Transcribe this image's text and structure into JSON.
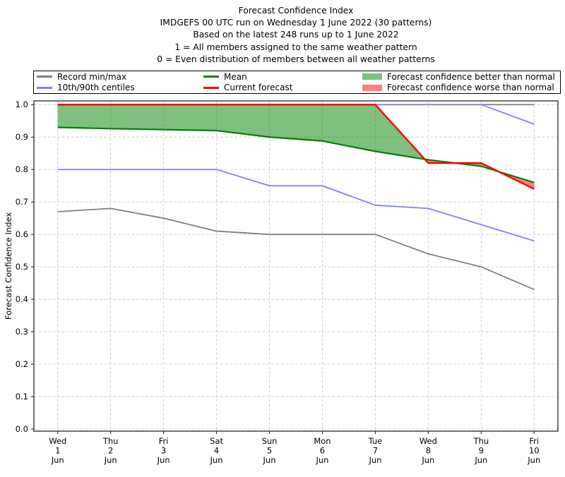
{
  "titles": [
    "Forecast Confidence Index",
    "IMDGEFS 00 UTC run on Wednesday 1 June 2022 (30 patterns)",
    "Based on the latest 248 runs up to 1 June 2022",
    "1 = All members assigned to the same weather pattern",
    "0 = Even distribution of members between all weather patterns"
  ],
  "legend": {
    "items": [
      {
        "label": "Record min/max",
        "type": "line",
        "color": "#808080"
      },
      {
        "label": "Mean",
        "type": "line",
        "color": "#008000"
      },
      {
        "label": "Forecast confidence better than normal",
        "type": "patch",
        "color": "#008000"
      },
      {
        "label": "10th/90th centiles",
        "type": "line",
        "color": "#8080fa"
      },
      {
        "label": "Current forecast",
        "type": "line",
        "color": "#ff0000"
      },
      {
        "label": "Forecast confidence worse than normal",
        "type": "patch",
        "color": "#ff0000"
      }
    ]
  },
  "y_axis": {
    "label": "Forecast Confidence Index",
    "ticks": [
      "0.0",
      "0.1",
      "0.2",
      "0.3",
      "0.4",
      "0.5",
      "0.6",
      "0.7",
      "0.8",
      "0.9",
      "1.0"
    ]
  },
  "x_axis": {
    "labels": [
      [
        "Wed",
        "1",
        "Jun"
      ],
      [
        "Thu",
        "2",
        "Jun"
      ],
      [
        "Fri",
        "3",
        "Jun"
      ],
      [
        "Sat",
        "4",
        "Jun"
      ],
      [
        "Sun",
        "5",
        "Jun"
      ],
      [
        "Mon",
        "6",
        "Jun"
      ],
      [
        "Tue",
        "7",
        "Jun"
      ],
      [
        "Wed",
        "8",
        "Jun"
      ],
      [
        "Thu",
        "9",
        "Jun"
      ],
      [
        "Fri",
        "10",
        "Jun"
      ]
    ]
  },
  "chart_data": {
    "type": "line",
    "title": "Forecast Confidence Index",
    "ylabel": "Forecast Confidence Index",
    "xlabel": "",
    "grid": true,
    "legend_position": "top",
    "ylim": [
      0.0,
      1.0
    ],
    "yticks": [
      0.0,
      0.1,
      0.2,
      0.3,
      0.4,
      0.5,
      0.6,
      0.7,
      0.8,
      0.9,
      1.0
    ],
    "x_categories": [
      "Wed 1 Jun",
      "Thu 2 Jun",
      "Fri 3 Jun",
      "Sat 4 Jun",
      "Sun 5 Jun",
      "Mon 6 Jun",
      "Tue 7 Jun",
      "Wed 8 Jun",
      "Thu 9 Jun",
      "Fri 10 Jun"
    ],
    "series": [
      {
        "name": "Record max",
        "color": "#808080",
        "width": 1.8,
        "values": [
          1.0,
          1.0,
          1.0,
          1.0,
          1.0,
          1.0,
          1.0,
          1.0,
          1.0,
          1.0
        ]
      },
      {
        "name": "Record min",
        "color": "#808080",
        "width": 1.8,
        "values": [
          0.67,
          0.68,
          0.65,
          0.61,
          0.6,
          0.6,
          0.6,
          0.54,
          0.5,
          0.43
        ]
      },
      {
        "name": "90th centile",
        "color": "#8080fa",
        "width": 1.8,
        "values": [
          1.0,
          1.0,
          1.0,
          1.0,
          1.0,
          1.0,
          1.0,
          1.0,
          1.0,
          0.94
        ]
      },
      {
        "name": "10th centile",
        "color": "#8080fa",
        "width": 1.8,
        "values": [
          0.8,
          0.8,
          0.8,
          0.8,
          0.75,
          0.75,
          0.69,
          0.68,
          0.63,
          0.58
        ]
      },
      {
        "name": "Mean",
        "color": "#008000",
        "width": 2.2,
        "values": [
          0.93,
          0.926,
          0.923,
          0.92,
          0.9,
          0.888,
          0.856,
          0.83,
          0.81,
          0.76
        ]
      },
      {
        "name": "Current forecast",
        "color": "#ff0000",
        "width": 2.4,
        "values": [
          1.0,
          1.0,
          1.0,
          1.0,
          1.0,
          1.0,
          1.0,
          0.82,
          0.82,
          0.74
        ]
      }
    ],
    "fills": {
      "between": [
        "Current forecast",
        "Mean"
      ],
      "positive_label": "Forecast confidence better than normal",
      "negative_label": "Forecast confidence worse than normal",
      "positive_color": "#008000",
      "negative_color": "#ff0000",
      "opacity": 0.5
    }
  }
}
